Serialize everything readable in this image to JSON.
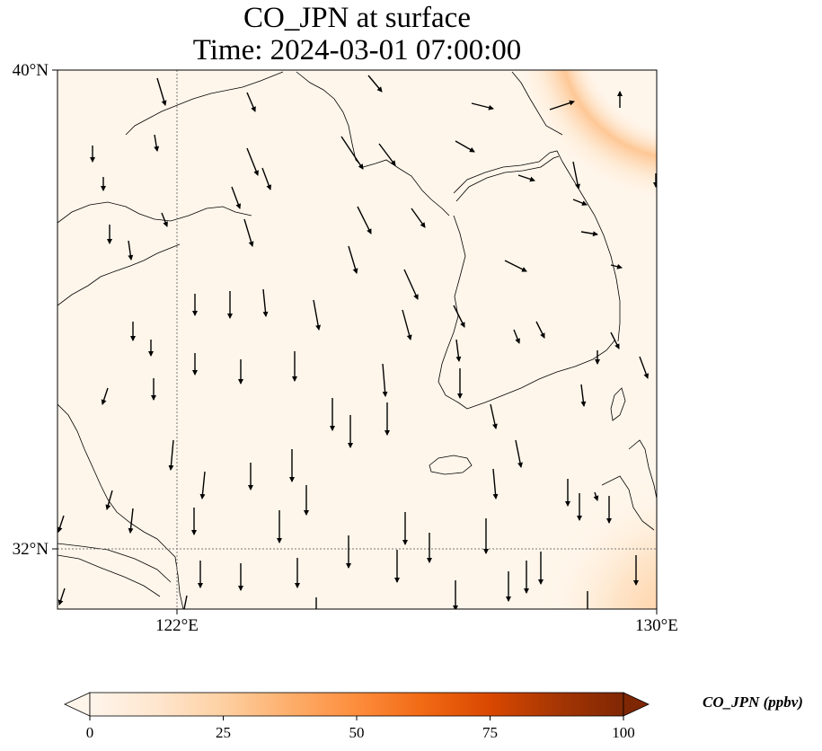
{
  "title": {
    "line1": "CO_JPN at surface",
    "line2": "Time: 2024-03-01 07:00:00"
  },
  "map": {
    "extent": {
      "lon_min": 118,
      "lon_max": 130,
      "lat_min": 31,
      "lat_max": 40
    },
    "ticks": {
      "lat": [
        {
          "value": 40,
          "label": "40°N"
        },
        {
          "value": 32,
          "label": "32°N"
        }
      ],
      "lon": [
        {
          "value": 122,
          "label": "122°E"
        },
        {
          "value": 130,
          "label": "130°E"
        }
      ]
    },
    "gridlines": {
      "lat": [
        32
      ],
      "lon": [
        122
      ]
    },
    "background_color": "#fff6eb"
  },
  "colorbar": {
    "label": "CO_JPN (ppbv)",
    "min": 0,
    "max": 100,
    "ticks": [
      {
        "value": 0,
        "label": "0"
      },
      {
        "value": 25,
        "label": "25"
      },
      {
        "value": 50,
        "label": "50"
      },
      {
        "value": 75,
        "label": "75"
      },
      {
        "value": 100,
        "label": "100"
      }
    ],
    "colors": [
      "#fff5eb",
      "#fee6ce",
      "#fdd0a2",
      "#fdae6b",
      "#fd8d3c",
      "#f16913",
      "#d94801",
      "#a63603",
      "#7f2704"
    ],
    "extend": "both"
  }
}
